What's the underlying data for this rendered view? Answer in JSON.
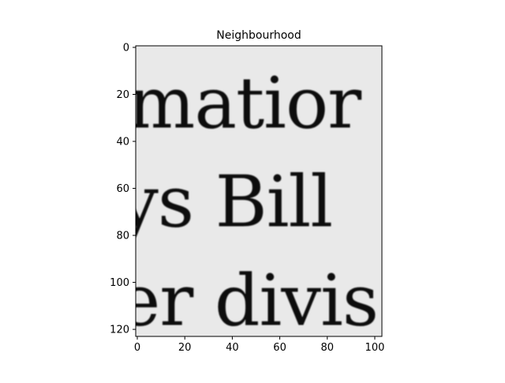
{
  "chart_data": {
    "type": "heatmap",
    "title": "Neighbourhood",
    "xlabel": "",
    "ylabel": "",
    "xlim": [
      0,
      103
    ],
    "ylim": [
      123,
      0
    ],
    "x_ticks": [
      0,
      20,
      40,
      60,
      80,
      100
    ],
    "y_ticks": [
      0,
      20,
      40,
      60,
      80,
      100,
      120
    ],
    "grid": false,
    "colormap": "gray",
    "image_text_lines": [
      {
        "text": "matior",
        "y": 24
      },
      {
        "text": "ys Bill",
        "y": 66
      },
      {
        "text": "er divis",
        "y": 108
      }
    ]
  }
}
